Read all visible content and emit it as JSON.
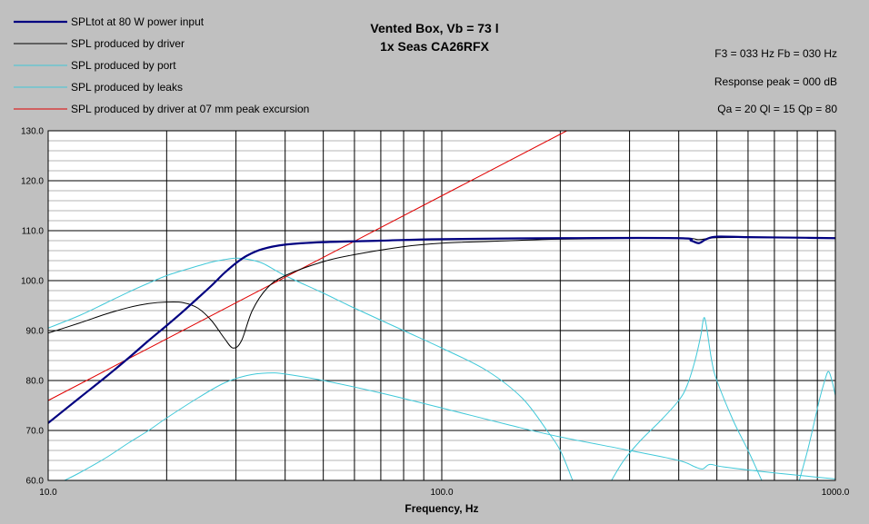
{
  "chart_data": {
    "type": "line",
    "title": "Vented Box, Vb = 73 l",
    "subtitle": "1x Seas CA26RFX",
    "xlabel": "Frequency, Hz",
    "ylabel": "",
    "xscale": "log",
    "xlim": [
      10,
      1000
    ],
    "ylim": [
      60,
      130
    ],
    "grid": true,
    "legend_position": "top-left",
    "x_tick_labels": [
      "10.0",
      "100.0",
      "1000.0"
    ],
    "y_tick_labels": [
      "60.0",
      "70.0",
      "80.0",
      "90.0",
      "100.0",
      "110.0",
      "120.0",
      "130.0"
    ],
    "annotations": [
      "F3 = 033 Hz  Fb = 030 Hz",
      "Response peak = 000 dB",
      "Qa = 20  Ql = 15  Qp = 80"
    ],
    "series": [
      {
        "name": "SPLtot at 80 W power input",
        "color": "#000080",
        "width": 2.2,
        "points": [
          [
            10,
            71.5
          ],
          [
            12,
            76.5
          ],
          [
            14,
            80.7
          ],
          [
            16,
            84.5
          ],
          [
            18,
            88
          ],
          [
            20,
            91
          ],
          [
            22,
            93.8
          ],
          [
            24,
            96.5
          ],
          [
            26,
            99
          ],
          [
            28,
            101.5
          ],
          [
            30,
            103.5
          ],
          [
            32,
            105
          ],
          [
            35,
            106.3
          ],
          [
            40,
            107.2
          ],
          [
            50,
            107.7
          ],
          [
            70,
            108
          ],
          [
            100,
            108.3
          ],
          [
            200,
            108.5
          ],
          [
            400,
            108.5
          ],
          [
            430,
            108
          ],
          [
            450,
            107.5
          ],
          [
            470,
            108.3
          ],
          [
            500,
            108.8
          ],
          [
            600,
            108.7
          ],
          [
            800,
            108.6
          ],
          [
            1000,
            108.5
          ]
        ]
      },
      {
        "name": "SPL produced by driver",
        "color": "#000000",
        "width": 1,
        "points": [
          [
            10,
            89.5
          ],
          [
            12,
            91.5
          ],
          [
            14,
            93.3
          ],
          [
            16,
            94.6
          ],
          [
            18,
            95.4
          ],
          [
            20,
            95.7
          ],
          [
            22,
            95.6
          ],
          [
            24,
            94.5
          ],
          [
            26,
            92
          ],
          [
            28,
            88.5
          ],
          [
            29.5,
            86.5
          ],
          [
            31,
            88
          ],
          [
            33,
            94
          ],
          [
            36,
            98.5
          ],
          [
            40,
            101
          ],
          [
            50,
            103.8
          ],
          [
            60,
            105.2
          ],
          [
            80,
            106.8
          ],
          [
            100,
            107.5
          ],
          [
            150,
            108
          ],
          [
            200,
            108.3
          ],
          [
            400,
            108.5
          ],
          [
            450,
            108.2
          ],
          [
            500,
            108.6
          ],
          [
            700,
            108.6
          ],
          [
            1000,
            108.5
          ]
        ]
      },
      {
        "name": "SPL produced by port",
        "color": "#40c8d8",
        "width": 1,
        "points": [
          [
            10,
            90.5
          ],
          [
            12,
            93
          ],
          [
            14,
            95.5
          ],
          [
            16,
            97.7
          ],
          [
            18,
            99.5
          ],
          [
            20,
            101
          ],
          [
            23,
            102.5
          ],
          [
            26,
            103.7
          ],
          [
            28,
            104.2
          ],
          [
            30,
            104.5
          ],
          [
            32,
            104.3
          ],
          [
            35,
            103.5
          ],
          [
            40,
            101
          ],
          [
            50,
            97.5
          ],
          [
            60,
            94.5
          ],
          [
            80,
            90
          ],
          [
            100,
            86.5
          ],
          [
            130,
            82
          ],
          [
            160,
            76.5
          ],
          [
            185,
            70
          ],
          [
            200,
            66
          ],
          [
            215,
            60
          ]
        ]
      },
      {
        "name": "SPL produced by leaks",
        "color": "#40c8d8",
        "width": 1,
        "points": [
          [
            11,
            60
          ],
          [
            12,
            61.5
          ],
          [
            14,
            64.5
          ],
          [
            16,
            67.5
          ],
          [
            18,
            70
          ],
          [
            20,
            72.5
          ],
          [
            24,
            76.5
          ],
          [
            28,
            79.5
          ],
          [
            32,
            81
          ],
          [
            36,
            81.5
          ],
          [
            40,
            81.3
          ],
          [
            50,
            80
          ],
          [
            70,
            77.5
          ],
          [
            100,
            74.5
          ],
          [
            150,
            71
          ],
          [
            200,
            68.7
          ],
          [
            300,
            66
          ],
          [
            400,
            64
          ],
          [
            440,
            62.7
          ],
          [
            460,
            62.3
          ],
          [
            480,
            63.2
          ],
          [
            520,
            62.7
          ],
          [
            700,
            61.5
          ],
          [
            1000,
            60.3
          ]
        ]
      },
      {
        "name": "",
        "color": "#40c8d8",
        "width": 1,
        "points": [
          [
            270,
            60
          ],
          [
            290,
            64
          ],
          [
            320,
            68
          ],
          [
            360,
            72
          ],
          [
            400,
            76
          ],
          [
            420,
            79
          ],
          [
            440,
            84
          ],
          [
            455,
            89
          ],
          [
            463,
            92.5
          ],
          [
            470,
            91
          ],
          [
            485,
            84
          ],
          [
            500,
            80
          ],
          [
            550,
            72
          ],
          [
            600,
            66
          ],
          [
            650,
            60
          ]
        ]
      },
      {
        "name": "",
        "color": "#40c8d8",
        "width": 1,
        "points": [
          [
            810,
            60
          ],
          [
            850,
            66
          ],
          [
            880,
            71
          ],
          [
            910,
            76
          ],
          [
            940,
            80
          ],
          [
            960,
            81.8
          ],
          [
            980,
            80
          ],
          [
            1000,
            77
          ]
        ]
      },
      {
        "name": "SPL produced by driver at 07 mm peak excursion",
        "color": "#e00000",
        "width": 1,
        "points": [
          [
            10,
            76
          ],
          [
            207.8,
            130
          ]
        ]
      }
    ]
  }
}
